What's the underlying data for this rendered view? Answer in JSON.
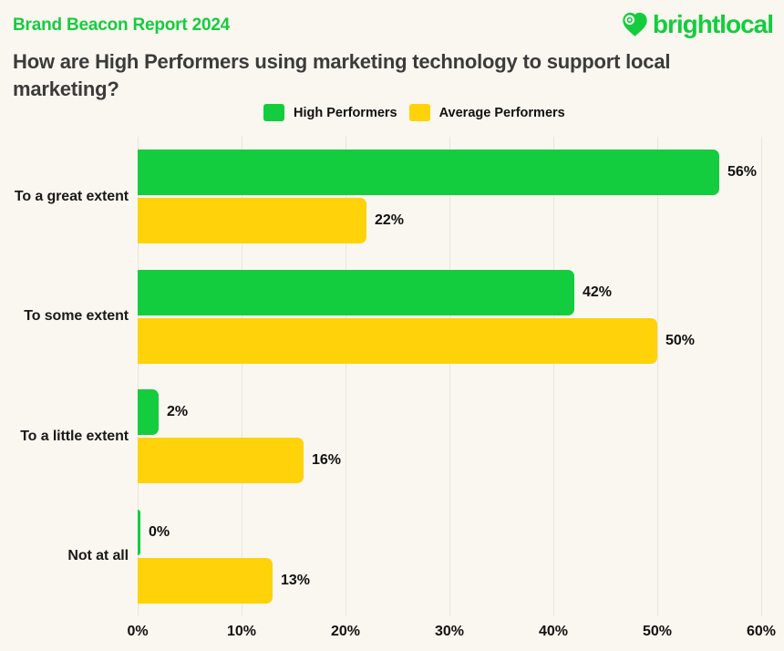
{
  "header": {
    "report_label": "Brand Beacon Report 2024",
    "logo_text": "brightlocal"
  },
  "title": "How are High Performers using marketing technology to support local marketing?",
  "legend": [
    {
      "label": "High Performers",
      "color": "#13CD3E"
    },
    {
      "label": "Average Performers",
      "color": "#FFD20A"
    }
  ],
  "colors": {
    "background": "#FAF7F0",
    "brand_green": "#13CD3E",
    "bar_yellow": "#FFD20A",
    "title_text": "#3B3B3B",
    "gridline": "#E8E5DD"
  },
  "chart_data": {
    "type": "bar",
    "orientation": "horizontal",
    "title": "How are High Performers using marketing technology to support local marketing?",
    "categories": [
      "To a great extent",
      "To some extent",
      "To a little extent",
      "Not at all"
    ],
    "series": [
      {
        "name": "High Performers",
        "color": "#13CD3E",
        "values": [
          56,
          42,
          2,
          0
        ]
      },
      {
        "name": "Average Performers",
        "color": "#FFD20A",
        "values": [
          22,
          50,
          16,
          13
        ]
      }
    ],
    "value_labels": [
      [
        "56%",
        "42%",
        "2%",
        "0%"
      ],
      [
        "22%",
        "50%",
        "16%",
        "13%"
      ]
    ],
    "xlim": [
      0,
      60
    ],
    "x_ticks": [
      "0%",
      "10%",
      "20%",
      "30%",
      "40%",
      "50%",
      "60%"
    ],
    "grid": true,
    "legend_position": "top"
  }
}
